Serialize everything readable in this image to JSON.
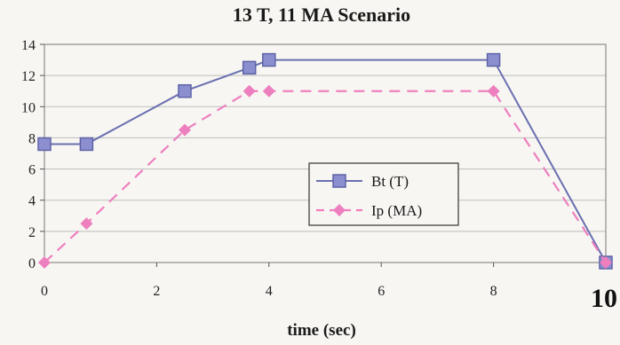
{
  "chart_data": {
    "type": "line",
    "title": "13 T, 11 MA Scenario",
    "xlabel": "time (sec)",
    "ylabel": "",
    "xlim": [
      0,
      10
    ],
    "ylim": [
      0,
      14
    ],
    "x_ticks": [
      "0",
      "2",
      "4",
      "6",
      "8",
      "10"
    ],
    "y_ticks": [
      "0",
      "2",
      "4",
      "6",
      "8",
      "10",
      "12",
      "14"
    ],
    "grid": "horizontal",
    "legend_position": "center-right",
    "series": [
      {
        "name": "Bt (T)",
        "color": "#6a6fb0",
        "marker": "square",
        "line_style": "solid",
        "x": [
          0,
          0.75,
          2.5,
          3.65,
          4.0,
          8.0,
          10.0
        ],
        "y": [
          7.6,
          7.6,
          11.0,
          12.5,
          13.0,
          13.0,
          0.0
        ]
      },
      {
        "name": "Ip (MA)",
        "color": "#ee7fbf",
        "marker": "diamond",
        "line_style": "dashed",
        "x": [
          0,
          0.75,
          2.5,
          3.65,
          4.0,
          8.0,
          10.0
        ],
        "y": [
          0.0,
          2.5,
          8.5,
          11.0,
          11.0,
          11.0,
          0.0
        ]
      }
    ]
  }
}
